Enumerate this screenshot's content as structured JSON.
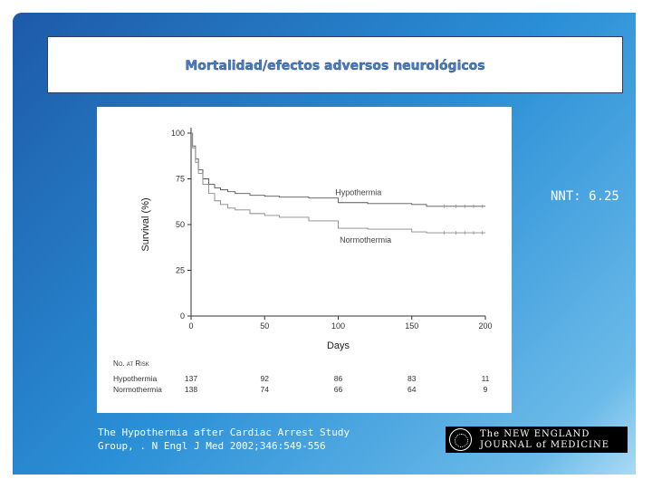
{
  "slide": {
    "title": "Mortalidad/efectos adversos neurológicos",
    "nnt": "NNT: 6.25",
    "citation_line1": "The Hypothermia after Cardiac Arrest Study",
    "citation_line2": "Group, . N Engl J Med 2002;346:549-556",
    "logo": {
      "line1": "The NEW ENGLAND",
      "line2": "JOURNAL of MEDICINE"
    },
    "colors": {
      "background": "#2a8fd6",
      "title": "#4a7bbd"
    }
  },
  "chart_data": {
    "type": "line",
    "title": "",
    "xlabel": "Days",
    "ylabel": "Survival (%)",
    "xlim": [
      0,
      200
    ],
    "ylim": [
      0,
      100
    ],
    "x_ticks": [
      "0",
      "50",
      "100",
      "150",
      "200"
    ],
    "y_ticks": [
      "0",
      "25",
      "50",
      "75",
      "100"
    ],
    "grid": false,
    "series": [
      {
        "name": "Hypothermia",
        "x": [
          0,
          1,
          3,
          5,
          8,
          12,
          16,
          20,
          25,
          30,
          40,
          50,
          60,
          80,
          100,
          120,
          150,
          160,
          200
        ],
        "y": [
          100,
          93,
          86,
          80,
          75,
          72,
          70,
          69,
          68,
          67,
          66,
          65.5,
          65,
          64.5,
          62,
          61.5,
          61,
          60,
          60
        ]
      },
      {
        "name": "Normothermia",
        "x": [
          0,
          1,
          3,
          5,
          8,
          12,
          16,
          20,
          25,
          30,
          40,
          50,
          60,
          80,
          100,
          120,
          150,
          160,
          200
        ],
        "y": [
          100,
          92,
          84,
          78,
          72,
          67,
          63,
          61,
          59,
          58,
          56,
          55,
          54,
          52,
          48,
          47.5,
          46,
          45.5,
          45.5
        ]
      }
    ],
    "at_risk": {
      "header": "No. at Risk",
      "days": [
        0,
        50,
        100,
        150,
        200
      ],
      "rows": [
        {
          "name": "Hypothermia",
          "values": [
            "137",
            "92",
            "86",
            "83",
            "11"
          ]
        },
        {
          "name": "Normothermia",
          "values": [
            "138",
            "74",
            "66",
            "64",
            "9"
          ]
        }
      ]
    }
  }
}
